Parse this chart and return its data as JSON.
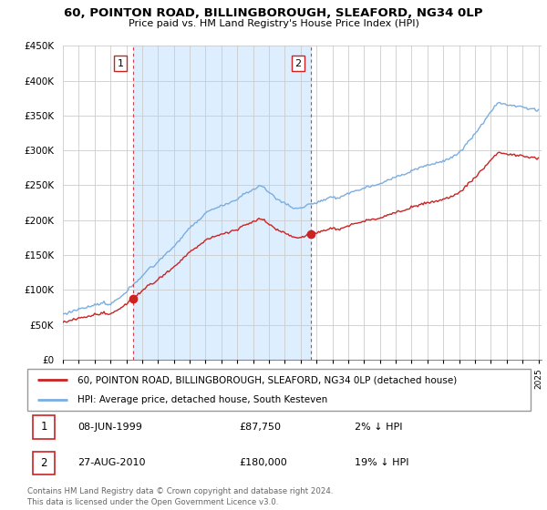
{
  "title": "60, POINTON ROAD, BILLINGBOROUGH, SLEAFORD, NG34 0LP",
  "subtitle": "Price paid vs. HM Land Registry's House Price Index (HPI)",
  "ylim": [
    0,
    450000
  ],
  "yticks": [
    0,
    50000,
    100000,
    150000,
    200000,
    250000,
    300000,
    350000,
    400000,
    450000
  ],
  "property_color": "#cc2222",
  "hpi_color": "#7aade0",
  "vline_color": "#cc2222",
  "shade_color": "#ddeeff",
  "sale1_date_x": 1999.44,
  "sale1_price": 87750,
  "sale1_label": "1",
  "sale2_date_x": 2010.65,
  "sale2_price": 180000,
  "sale2_label": "2",
  "legend_property": "60, POINTON ROAD, BILLINGBOROUGH, SLEAFORD, NG34 0LP (detached house)",
  "legend_hpi": "HPI: Average price, detached house, South Kesteven",
  "table_row1": [
    "1",
    "08-JUN-1999",
    "£87,750",
    "2% ↓ HPI"
  ],
  "table_row2": [
    "2",
    "27-AUG-2010",
    "£180,000",
    "19% ↓ HPI"
  ],
  "footer": "Contains HM Land Registry data © Crown copyright and database right 2024.\nThis data is licensed under the Open Government Licence v3.0.",
  "background_color": "#ffffff",
  "grid_color": "#cccccc",
  "xlim_start": 1995,
  "xlim_end": 2025
}
